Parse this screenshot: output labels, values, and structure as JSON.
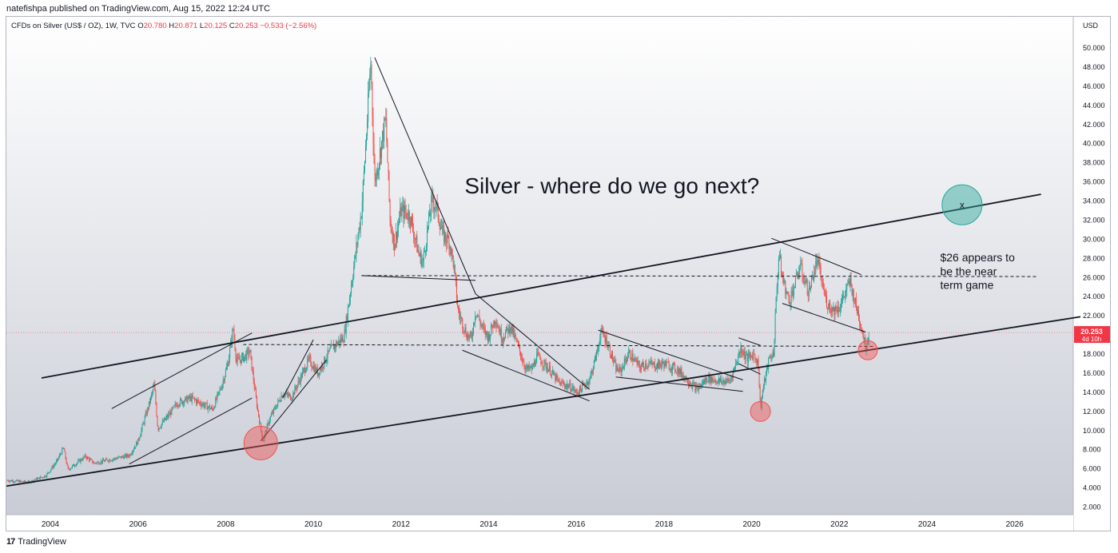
{
  "header": {
    "published": "natefishpa published on TradingView.com, Aug 15, 2022 12:24 UTC"
  },
  "legend": {
    "symbol": "CFDs on Silver (US$ / OZ), 1W, TVC",
    "o_label": "O",
    "o": "20.780",
    "h_label": "H",
    "h": "20.871",
    "l_label": "L",
    "l": "20.125",
    "c_label": "C",
    "c": "20.253",
    "change": "−0.533 (−2.56%)"
  },
  "footer": {
    "brand": "TradingView",
    "logo": "17"
  },
  "colors": {
    "up": "#26a69a",
    "down": "#ef5350",
    "price_line": "#f23645",
    "background_top": "#ffffff",
    "background_bottom": "#c9ccd6",
    "green_circle": "#26a69a",
    "red_circle": "#ef5350"
  },
  "chart_data": {
    "type": "candlestick",
    "currency": "USD",
    "y_ticks": [
      "50.000",
      "48.000",
      "46.000",
      "44.000",
      "42.000",
      "40.000",
      "38.000",
      "36.000",
      "34.000",
      "32.000",
      "30.000",
      "28.000",
      "26.000",
      "24.000",
      "22.000",
      "20.000",
      "18.000",
      "16.000",
      "14.000",
      "12.000",
      "10.000",
      "8.000",
      "6.000",
      "4.000",
      "2.000"
    ],
    "ylim": [
      0,
      52
    ],
    "x_ticks": [
      "2004",
      "2006",
      "2008",
      "2010",
      "2012",
      "2014",
      "2016",
      "2018",
      "2020",
      "2022",
      "2024",
      "2026"
    ],
    "xlim": [
      2003.0,
      2027.5
    ],
    "last_price": {
      "value": 20.253,
      "label": "20.253",
      "countdown": "4d 10h"
    },
    "annotations": [
      {
        "text": "Silver - where do we go next?"
      },
      {
        "lines": [
          "$26 appears to",
          "be the near",
          "term game"
        ]
      },
      {
        "marker": "x"
      }
    ],
    "price_path": [
      [
        2003.0,
        4.8
      ],
      [
        2003.5,
        4.6
      ],
      [
        2003.9,
        5.3
      ],
      [
        2004.15,
        6.8
      ],
      [
        2004.3,
        8.2
      ],
      [
        2004.4,
        5.9
      ],
      [
        2004.8,
        7.3
      ],
      [
        2005.0,
        6.6
      ],
      [
        2005.5,
        7.1
      ],
      [
        2005.8,
        7.4
      ],
      [
        2006.0,
        8.9
      ],
      [
        2006.3,
        13.5
      ],
      [
        2006.37,
        14.8
      ],
      [
        2006.45,
        10.2
      ],
      [
        2006.7,
        11.6
      ],
      [
        2006.9,
        12.9
      ],
      [
        2007.2,
        13.4
      ],
      [
        2007.5,
        12.7
      ],
      [
        2007.7,
        12.2
      ],
      [
        2007.9,
        14.6
      ],
      [
        2008.05,
        17.0
      ],
      [
        2008.17,
        20.7
      ],
      [
        2008.25,
        17.2
      ],
      [
        2008.45,
        17.8
      ],
      [
        2008.55,
        18.3
      ],
      [
        2008.7,
        13.0
      ],
      [
        2008.8,
        10.2
      ],
      [
        2008.85,
        8.9
      ],
      [
        2009.0,
        11.2
      ],
      [
        2009.3,
        13.9
      ],
      [
        2009.5,
        13.5
      ],
      [
        2009.9,
        17.4
      ],
      [
        2010.1,
        16.0
      ],
      [
        2010.4,
        18.5
      ],
      [
        2010.7,
        19.8
      ],
      [
        2010.9,
        26.4
      ],
      [
        2011.0,
        29.7
      ],
      [
        2011.1,
        33.0
      ],
      [
        2011.2,
        40.2
      ],
      [
        2011.31,
        48.6
      ],
      [
        2011.4,
        36.0
      ],
      [
        2011.5,
        38.5
      ],
      [
        2011.65,
        42.6
      ],
      [
        2011.75,
        32.0
      ],
      [
        2011.85,
        29.5
      ],
      [
        2012.0,
        33.0
      ],
      [
        2012.2,
        32.5
      ],
      [
        2012.4,
        28.5
      ],
      [
        2012.5,
        27.6
      ],
      [
        2012.7,
        34.0
      ],
      [
        2012.8,
        33.5
      ],
      [
        2012.95,
        30.5
      ],
      [
        2013.1,
        29.8
      ],
      [
        2013.2,
        27.4
      ],
      [
        2013.3,
        22.5
      ],
      [
        2013.5,
        20.0
      ],
      [
        2013.6,
        19.6
      ],
      [
        2013.7,
        22.5
      ],
      [
        2013.9,
        20.3
      ],
      [
        2014.0,
        19.8
      ],
      [
        2014.15,
        21.8
      ],
      [
        2014.3,
        19.7
      ],
      [
        2014.5,
        20.9
      ],
      [
        2014.7,
        18.4
      ],
      [
        2014.85,
        16.4
      ],
      [
        2015.0,
        16.5
      ],
      [
        2015.1,
        17.8
      ],
      [
        2015.4,
        16.3
      ],
      [
        2015.6,
        15.0
      ],
      [
        2015.9,
        14.5
      ],
      [
        2016.0,
        13.9
      ],
      [
        2016.3,
        15.3
      ],
      [
        2016.5,
        18.7
      ],
      [
        2016.55,
        20.4
      ],
      [
        2016.7,
        19.3
      ],
      [
        2016.9,
        16.5
      ],
      [
        2017.0,
        16.2
      ],
      [
        2017.2,
        18.1
      ],
      [
        2017.45,
        16.6
      ],
      [
        2017.6,
        17.0
      ],
      [
        2017.8,
        16.8
      ],
      [
        2018.0,
        17.0
      ],
      [
        2018.3,
        16.4
      ],
      [
        2018.6,
        15.0
      ],
      [
        2018.75,
        14.3
      ],
      [
        2019.0,
        15.5
      ],
      [
        2019.3,
        15.1
      ],
      [
        2019.5,
        15.2
      ],
      [
        2019.65,
        17.1
      ],
      [
        2019.75,
        18.6
      ],
      [
        2019.9,
        17.5
      ],
      [
        2020.05,
        18.0
      ],
      [
        2020.15,
        17.0
      ],
      [
        2020.2,
        12.2
      ],
      [
        2020.25,
        14.2
      ],
      [
        2020.4,
        17.5
      ],
      [
        2020.5,
        18.1
      ],
      [
        2020.55,
        23.0
      ],
      [
        2020.62,
        28.5
      ],
      [
        2020.7,
        26.0
      ],
      [
        2020.85,
        23.5
      ],
      [
        2021.0,
        25.5
      ],
      [
        2021.1,
        27.2
      ],
      [
        2021.3,
        24.4
      ],
      [
        2021.4,
        26.3
      ],
      [
        2021.5,
        27.8
      ],
      [
        2021.6,
        25.5
      ],
      [
        2021.7,
        23.5
      ],
      [
        2021.85,
        22.6
      ],
      [
        2022.0,
        22.9
      ],
      [
        2022.15,
        24.6
      ],
      [
        2022.25,
        25.5
      ],
      [
        2022.35,
        23.5
      ],
      [
        2022.45,
        21.8
      ],
      [
        2022.55,
        20.0
      ],
      [
        2022.6,
        18.6
      ],
      [
        2022.68,
        20.25
      ]
    ]
  }
}
